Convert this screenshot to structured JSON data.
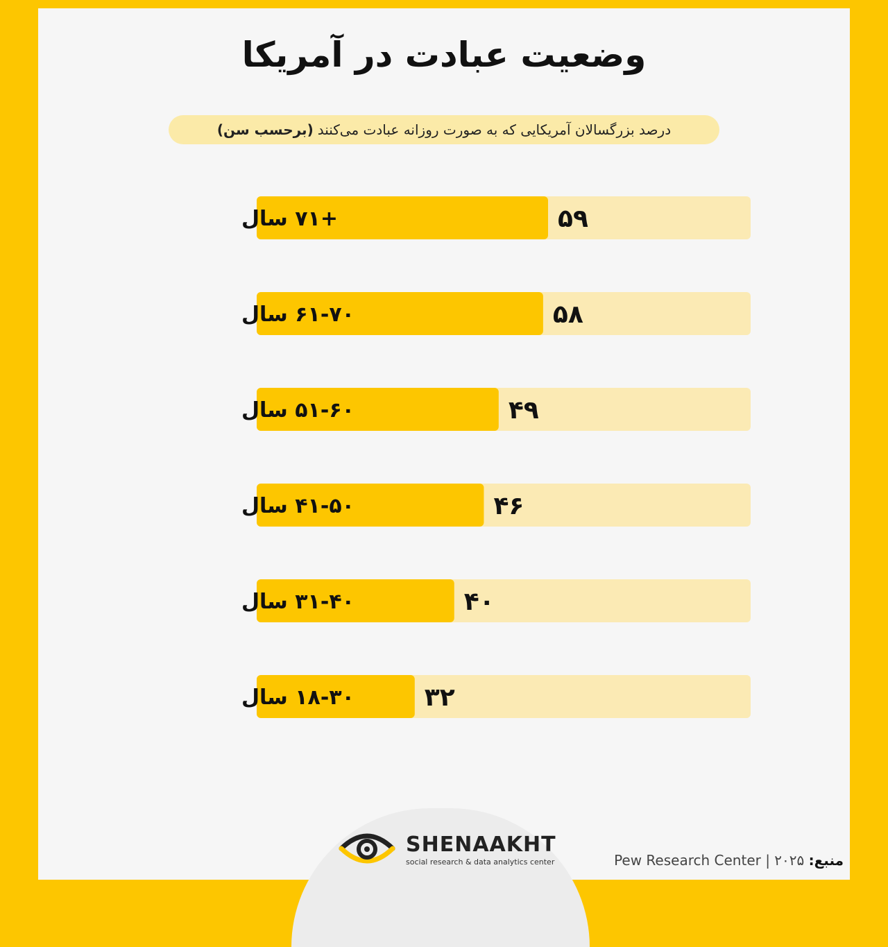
{
  "title": "وضعیت عبادت در آمریکا",
  "subtitle": {
    "text": "درصد بزرگسالان آمریکایی که به صورت روزانه عبادت می‌کنند",
    "emphasis": "(برحسب سن)"
  },
  "colors": {
    "bar": "#fdc600",
    "track": "#fbeab4",
    "frame": "#fdc600"
  },
  "chart_data": {
    "type": "bar",
    "orientation": "horizontal",
    "categories": [
      "+۷۱ سال",
      "۶۱-۷۰ سال",
      "۵۱-۶۰ سال",
      "۴۱-۵۰ سال",
      "۳۱-۴۰ سال",
      "۱۸-۳۰ سال"
    ],
    "values": [
      59,
      58,
      49,
      46,
      40,
      32
    ],
    "value_labels": [
      "۵۹",
      "۵۸",
      "۴۹",
      "۴۶",
      "۴۰",
      "۳۲"
    ],
    "xlim": [
      0,
      100
    ],
    "grid": false
  },
  "logo": {
    "name": "SHENAAKHT",
    "tagline": "social research & data analytics center",
    "icon": "eye-icon"
  },
  "source": {
    "label": "منبع:",
    "text": "Pew Research Center | ۲۰۲۵"
  }
}
